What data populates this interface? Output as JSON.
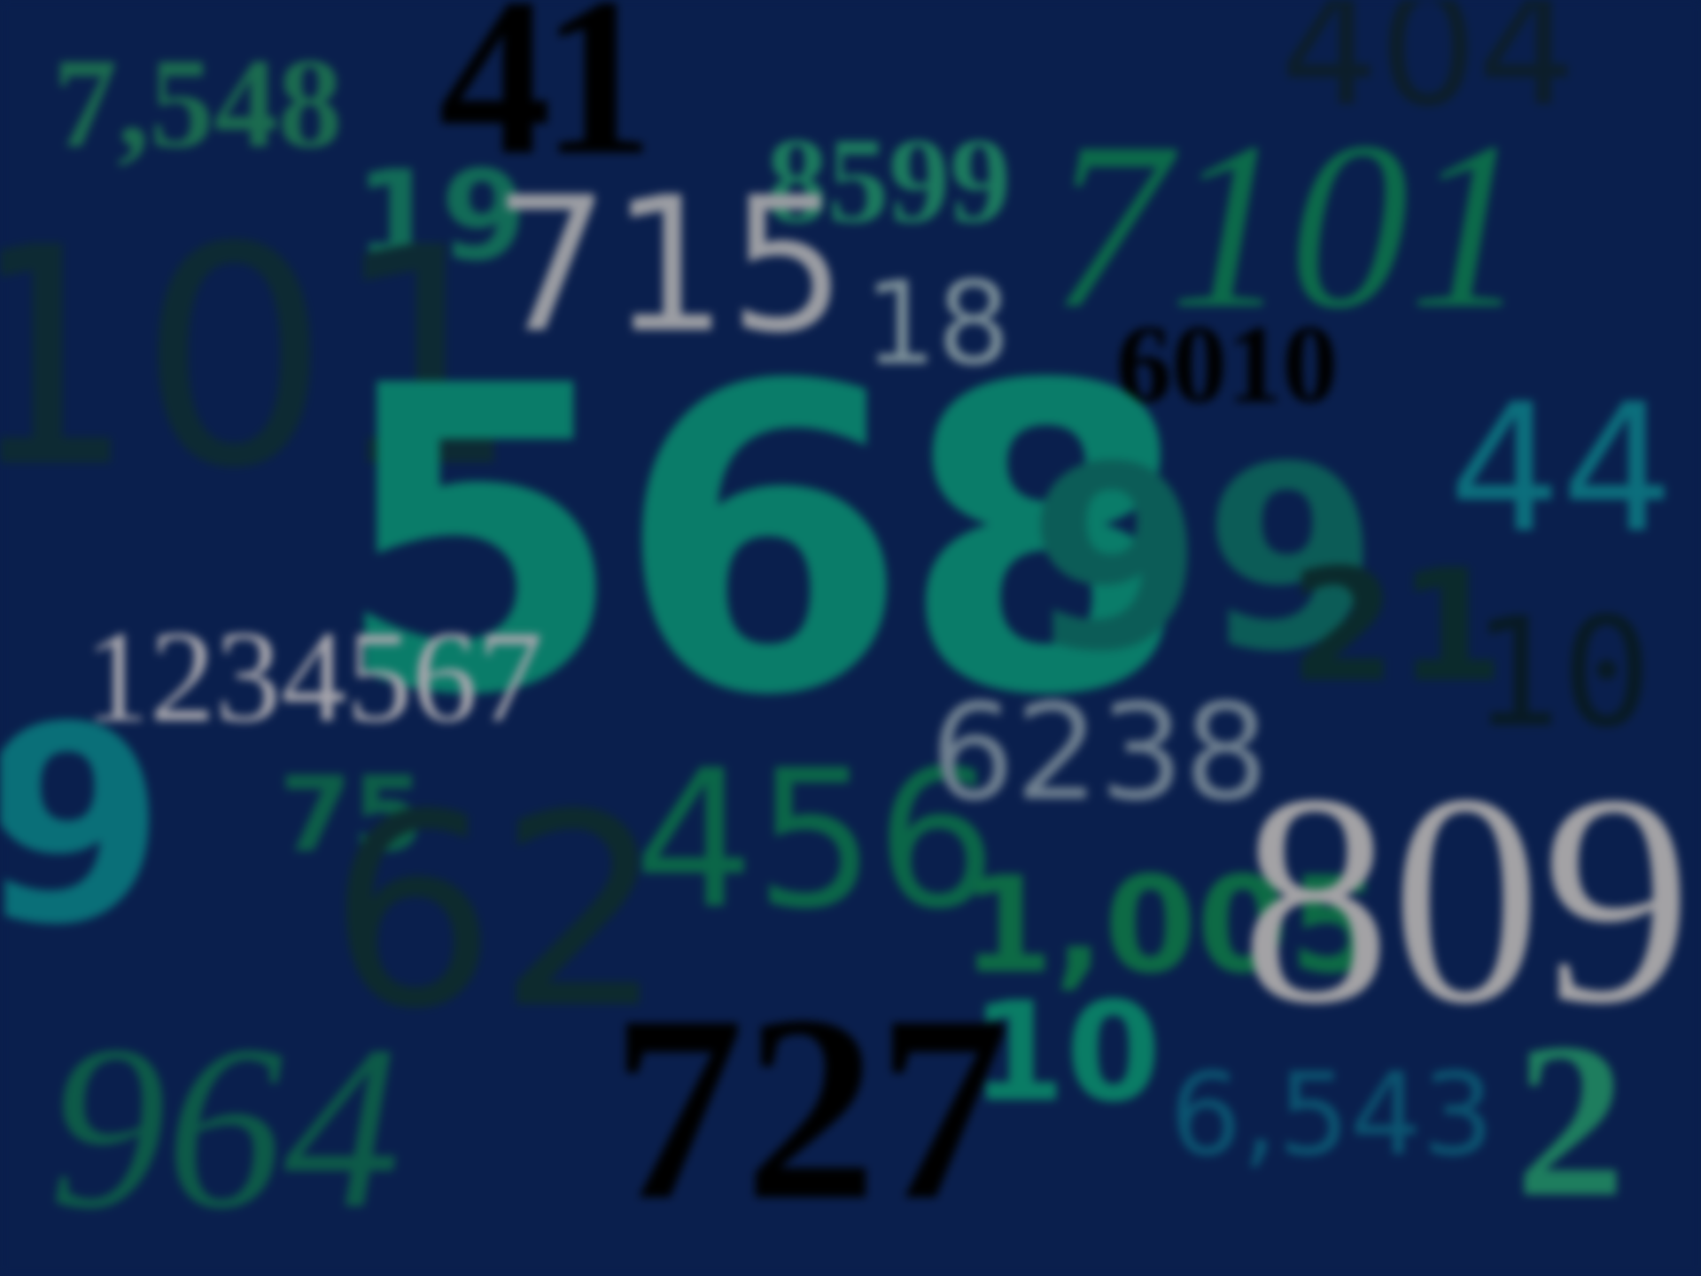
{
  "numbers": [
    {
      "text": "7,548",
      "color": "#1b6b4f"
    },
    {
      "text": "41",
      "color": "#000000"
    },
    {
      "text": "404",
      "color": "#0c1e2a"
    },
    {
      "text": "19",
      "color": "#126b57"
    },
    {
      "text": "8599",
      "color": "#1c7a5e"
    },
    {
      "text": "7101",
      "color": "#0c6a4a"
    },
    {
      "text": "101",
      "color": "#0d2a33"
    },
    {
      "text": "715",
      "color": "#9b9da3"
    },
    {
      "text": "18",
      "color": "#7a8e98"
    },
    {
      "text": "6010",
      "color": "#000000"
    },
    {
      "text": "568",
      "color": "#0a7c69"
    },
    {
      "text": "99",
      "color": "#0c5c57"
    },
    {
      "text": "44",
      "color": "#0c6e7c"
    },
    {
      "text": "21",
      "color": "#0b2a2c"
    },
    {
      "text": "10",
      "color": "#081a24"
    },
    {
      "text": "1234567",
      "color": "#a7a6ad"
    },
    {
      "text": "9",
      "color": "#0a6f78"
    },
    {
      "text": "75",
      "color": "#0d5e48"
    },
    {
      "text": "62",
      "color": "#0d2a2e"
    },
    {
      "text": "456",
      "color": "#0b6648"
    },
    {
      "text": "6238",
      "color": "#6f8090"
    },
    {
      "text": "1,005",
      "color": "#0d6a45"
    },
    {
      "text": "809",
      "color": "#a3a2a5"
    },
    {
      "text": "964",
      "color": "#0d5a48"
    },
    {
      "text": "727",
      "color": "#000000"
    },
    {
      "text": "10",
      "color": "#0a7c65"
    },
    {
      "text": "6,543",
      "color": "#0b5470"
    },
    {
      "text": "2",
      "color": "#1e7d5e"
    }
  ]
}
